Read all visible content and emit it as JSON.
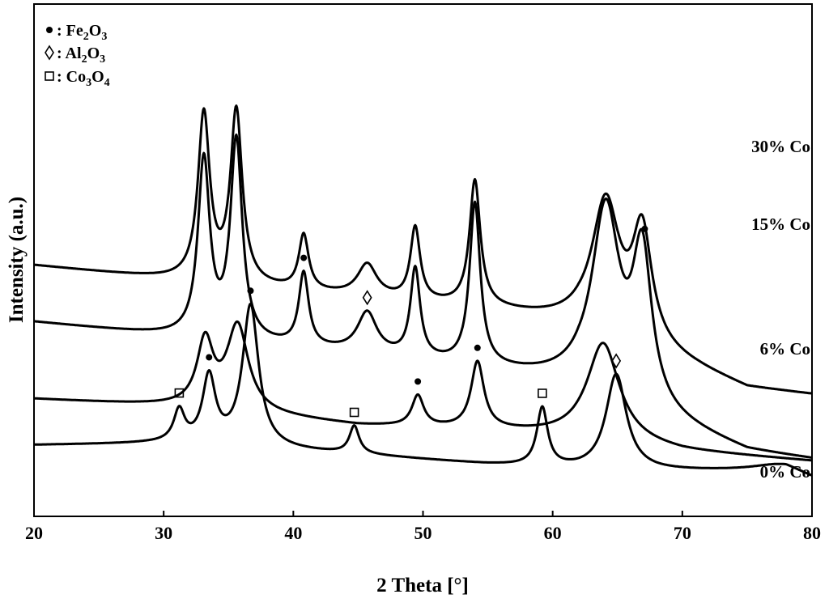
{
  "chart_data": {
    "type": "line",
    "title": "",
    "xlabel": "2 Theta [°]",
    "ylabel": "Intensity (a.u.)",
    "xlim": [
      20,
      80
    ],
    "x_ticks": [
      "20",
      "30",
      "40",
      "50",
      "60",
      "70",
      "80"
    ],
    "grid": false,
    "legend": {
      "placement": "top-left",
      "entries": [
        {
          "symbol": "dot",
          "prefix": " : Fe",
          "s1": "2",
          "mid": "O",
          "s2": "3",
          "name": "Fe2O3"
        },
        {
          "symbol": "diamond",
          "prefix": " : Al",
          "s1": "2",
          "mid": "O",
          "s2": "3",
          "name": "Al2O3"
        },
        {
          "symbol": "square",
          "prefix": " : Co",
          "s1": "3",
          "mid": "O",
          "s2": "4",
          "name": "Co3O4"
        }
      ]
    },
    "series": [
      {
        "name": "30% Co",
        "baseline": [
          [
            20,
            88
          ],
          [
            31,
            90
          ],
          [
            45,
            76
          ],
          [
            55,
            64
          ],
          [
            62,
            58
          ],
          [
            68,
            56
          ],
          [
            75,
            56
          ],
          [
            78,
            56
          ],
          [
            80,
            46
          ]
        ],
        "peaks": [
          {
            "x": 31.2,
            "h": 38,
            "w": 0.5
          },
          {
            "x": 33.5,
            "h": 82,
            "w": 0.6
          },
          {
            "x": 36.7,
            "h": 175,
            "w": 0.75
          },
          {
            "x": 44.7,
            "h": 34,
            "w": 0.45
          },
          {
            "x": 59.2,
            "h": 72,
            "w": 0.5
          },
          {
            "x": 64.9,
            "h": 118,
            "w": 0.95
          },
          {
            "x": 77.5,
            "h": 8,
            "w": 2.5
          }
        ],
        "markers": [
          {
            "x": 31.2,
            "symbol": "square"
          },
          {
            "x": 33.5,
            "symbol": "dot"
          },
          {
            "x": 36.7,
            "symbol": "dot"
          },
          {
            "x": 44.7,
            "symbol": "square"
          },
          {
            "x": 59.2,
            "symbol": "square"
          },
          {
            "x": 64.9,
            "symbol": "diamond"
          }
        ]
      },
      {
        "name": "15% Co",
        "baseline": [
          [
            20,
            145
          ],
          [
            32,
            135
          ],
          [
            45,
            112
          ],
          [
            55,
            106
          ],
          [
            62,
            98
          ],
          [
            70,
            80
          ],
          [
            80,
            68
          ]
        ],
        "peaks": [
          {
            "x": 33.2,
            "h": 80,
            "w": 0.75
          },
          {
            "x": 35.7,
            "h": 105,
            "w": 1.0
          },
          {
            "x": 49.6,
            "h": 38,
            "w": 0.55
          },
          {
            "x": 54.2,
            "h": 82,
            "w": 0.6
          },
          {
            "x": 63.9,
            "h": 120,
            "w": 1.5
          }
        ],
        "markers": [
          {
            "x": 49.6,
            "symbol": "dot"
          },
          {
            "x": 54.2,
            "symbol": "dot"
          }
        ]
      },
      {
        "name": "6% Co",
        "baseline": [
          [
            20,
            240
          ],
          [
            32,
            220
          ],
          [
            45,
            200
          ],
          [
            55,
            180
          ],
          [
            62,
            165
          ],
          [
            68,
            120
          ],
          [
            75,
            80
          ],
          [
            80,
            70
          ]
        ],
        "peaks": [
          {
            "x": 33.1,
            "h": 218,
            "w": 0.55
          },
          {
            "x": 35.6,
            "h": 245,
            "w": 0.55
          },
          {
            "x": 40.8,
            "h": 90,
            "w": 0.45
          },
          {
            "x": 45.7,
            "h": 50,
            "w": 0.9
          },
          {
            "x": 49.4,
            "h": 110,
            "w": 0.45
          },
          {
            "x": 54.0,
            "h": 200,
            "w": 0.5
          },
          {
            "x": 64.1,
            "h": 225,
            "w": 1.3
          },
          {
            "x": 66.9,
            "h": 185,
            "w": 0.9
          }
        ],
        "markers": [
          {
            "x": 40.8,
            "symbol": "dot"
          },
          {
            "x": 45.7,
            "symbol": "diamond"
          },
          {
            "x": 67.1,
            "symbol": "dot"
          }
        ]
      },
      {
        "name": "0% Co",
        "baseline": [
          [
            20,
            310
          ],
          [
            32,
            290
          ],
          [
            45,
            270
          ],
          [
            55,
            255
          ],
          [
            62,
            238
          ],
          [
            68,
            202
          ],
          [
            75,
            158
          ],
          [
            80,
            150
          ]
        ],
        "peaks": [
          {
            "x": 33.1,
            "h": 205,
            "w": 0.55
          },
          {
            "x": 35.6,
            "h": 212,
            "w": 0.55
          },
          {
            "x": 40.8,
            "h": 68,
            "w": 0.45
          },
          {
            "x": 45.7,
            "h": 40,
            "w": 0.9
          },
          {
            "x": 49.4,
            "h": 90,
            "w": 0.45
          },
          {
            "x": 54.0,
            "h": 155,
            "w": 0.5
          },
          {
            "x": 64.1,
            "h": 160,
            "w": 1.3
          },
          {
            "x": 66.9,
            "h": 135,
            "w": 0.9
          }
        ],
        "markers": []
      }
    ]
  }
}
